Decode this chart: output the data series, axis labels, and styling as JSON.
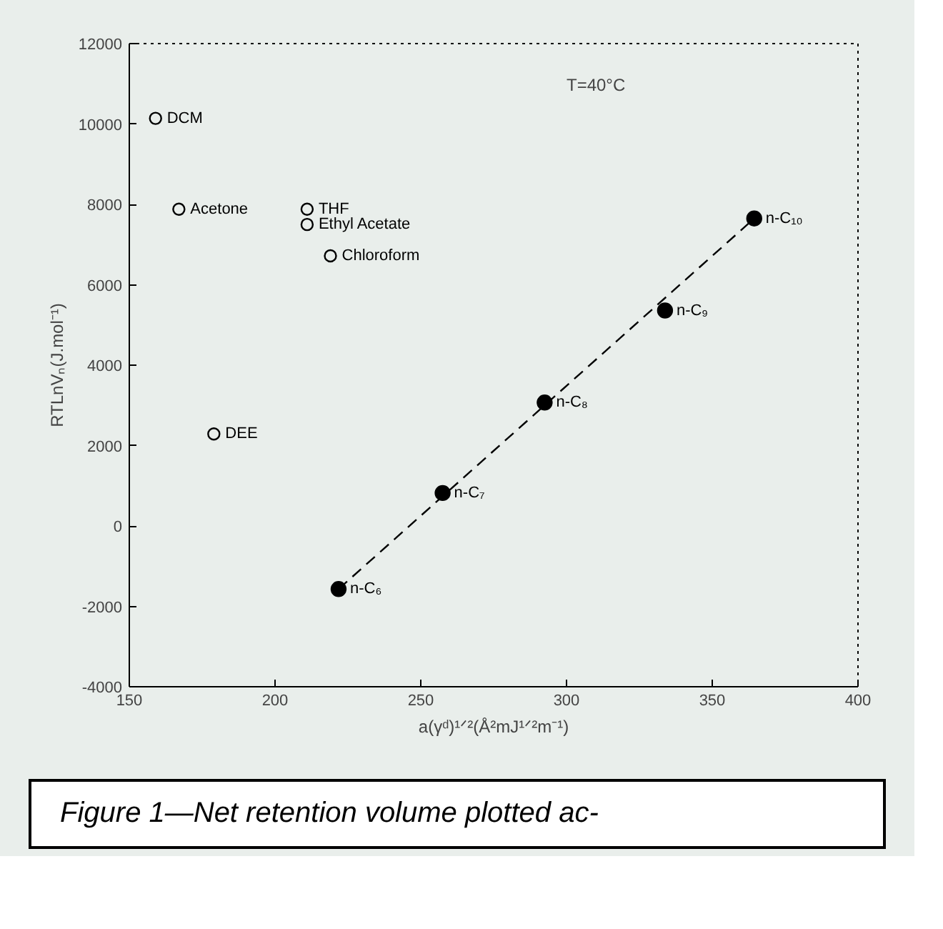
{
  "chart_data": {
    "type": "scatter",
    "xlabel": "a(γᵈ)¹ᐟ²(Å²mJ¹ᐟ²m⁻¹)",
    "ylabel": "RTLnVₙ(J.mol⁻¹)",
    "xlim": [
      150,
      400
    ],
    "xticks": [
      150,
      200,
      250,
      300,
      350,
      400
    ],
    "ylim": [
      -4000,
      12000
    ],
    "yticks": [
      -4000,
      -2000,
      0,
      2000,
      4000,
      6000,
      8000,
      10000,
      12000
    ],
    "grid": false,
    "series": [
      {
        "marker": "circle",
        "color": "#000000",
        "x": [
          221.8,
          257.5,
          292.5,
          333.8,
          364.4
        ],
        "values": [
          -1570,
          820,
          3070,
          5360,
          7650
        ]
      },
      {
        "marker": "circle",
        "color": "#000000",
        "x": [
          159,
          167,
          211,
          211,
          219,
          179
        ],
        "values": [
          10140,
          7880,
          7880,
          7500,
          6720,
          2290
        ]
      },
      {
        "type": "line",
        "color": "#000000",
        "line_style": "dashed",
        "x": [
          221.8,
          364.4
        ],
        "values": [
          -1570,
          7650
        ]
      }
    ],
    "annotations": [
      {
        "text": "n-C₆",
        "x": 221.8,
        "y": -1570
      },
      {
        "text": "n-C₇",
        "x": 257.5,
        "y": 820
      },
      {
        "text": "n-C₈",
        "x": 292.5,
        "y": 3070
      },
      {
        "text": "n-C₉",
        "x": 333.8,
        "y": 5360
      },
      {
        "text": "n-C₁₀",
        "x": 364.4,
        "y": 7650
      },
      {
        "text": "DCM",
        "x": 159,
        "y": 10140
      },
      {
        "text": "Acetone",
        "x": 167,
        "y": 7880
      },
      {
        "text": "THF",
        "x": 211,
        "y": 7880
      },
      {
        "text": "Ethyl Acetate",
        "x": 211,
        "y": 7500
      },
      {
        "text": "Chloroform",
        "x": 219,
        "y": 6720
      },
      {
        "text": "DEE",
        "x": 179,
        "y": 2290
      },
      "T=40°C",
      "Figure 1—Net retention volume plotted ac-"
    ]
  }
}
